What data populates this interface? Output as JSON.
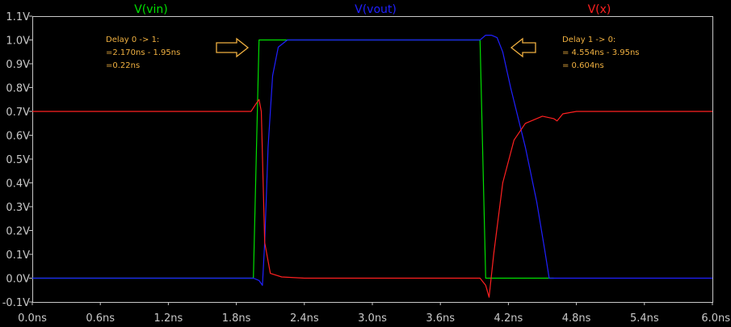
{
  "chart_data": {
    "type": "line",
    "xlim": [
      0.0,
      6.0
    ],
    "ylim": [
      -0.1,
      1.1
    ],
    "x_ticks": [
      {
        "value": 0.0,
        "label": "0.0ns"
      },
      {
        "value": 0.6,
        "label": "0.6ns"
      },
      {
        "value": 1.2,
        "label": "1.2ns"
      },
      {
        "value": 1.8,
        "label": "1.8ns"
      },
      {
        "value": 2.4,
        "label": "2.4ns"
      },
      {
        "value": 3.0,
        "label": "3.0ns"
      },
      {
        "value": 3.6,
        "label": "3.6ns"
      },
      {
        "value": 4.2,
        "label": "4.2ns"
      },
      {
        "value": 4.8,
        "label": "4.8ns"
      },
      {
        "value": 5.4,
        "label": "5.4ns"
      },
      {
        "value": 6.0,
        "label": "6.0ns"
      }
    ],
    "y_ticks": [
      {
        "value": 1.1,
        "label": "1.1V"
      },
      {
        "value": 1.0,
        "label": "1.0V"
      },
      {
        "value": 0.9,
        "label": "0.9V"
      },
      {
        "value": 0.8,
        "label": "0.8V"
      },
      {
        "value": 0.7,
        "label": "0.7V"
      },
      {
        "value": 0.6,
        "label": "0.6V"
      },
      {
        "value": 0.5,
        "label": "0.5V"
      },
      {
        "value": 0.4,
        "label": "0.4V"
      },
      {
        "value": 0.3,
        "label": "0.3V"
      },
      {
        "value": 0.2,
        "label": "0.2V"
      },
      {
        "value": 0.1,
        "label": "0.1V"
      },
      {
        "value": 0.0,
        "label": "0.0V"
      },
      {
        "value": -0.1,
        "label": "-0.1V"
      }
    ],
    "series": [
      {
        "name": "V(vin)",
        "color": "#00e000",
        "points": [
          [
            0.0,
            0.0
          ],
          [
            1.9,
            0.0
          ],
          [
            1.95,
            0.0
          ],
          [
            2.0,
            1.0
          ],
          [
            2.2,
            1.0
          ],
          [
            3.95,
            1.0
          ],
          [
            4.0,
            0.0
          ],
          [
            4.6,
            0.0
          ]
        ]
      },
      {
        "name": "V(vout)",
        "color": "#2020ff",
        "points": [
          [
            0.0,
            0.0
          ],
          [
            1.95,
            0.0
          ],
          [
            2.0,
            -0.01
          ],
          [
            2.03,
            -0.03
          ],
          [
            2.05,
            0.15
          ],
          [
            2.08,
            0.55
          ],
          [
            2.12,
            0.85
          ],
          [
            2.17,
            0.97
          ],
          [
            2.25,
            1.0
          ],
          [
            3.95,
            1.0
          ],
          [
            4.0,
            1.02
          ],
          [
            4.05,
            1.02
          ],
          [
            4.1,
            1.01
          ],
          [
            4.15,
            0.95
          ],
          [
            4.22,
            0.8
          ],
          [
            4.35,
            0.55
          ],
          [
            4.45,
            0.32
          ],
          [
            4.52,
            0.12
          ],
          [
            4.56,
            0.0
          ],
          [
            6.0,
            0.0
          ]
        ]
      },
      {
        "name": "V(x)",
        "color": "#ff2020",
        "points": [
          [
            0.0,
            0.7
          ],
          [
            1.93,
            0.7
          ],
          [
            1.97,
            0.73
          ],
          [
            2.0,
            0.75
          ],
          [
            2.02,
            0.7
          ],
          [
            2.05,
            0.15
          ],
          [
            2.1,
            0.02
          ],
          [
            2.2,
            0.005
          ],
          [
            2.4,
            0.0
          ],
          [
            3.95,
            0.0
          ],
          [
            4.0,
            -0.03
          ],
          [
            4.03,
            -0.08
          ],
          [
            4.07,
            0.1
          ],
          [
            4.15,
            0.4
          ],
          [
            4.25,
            0.58
          ],
          [
            4.35,
            0.65
          ],
          [
            4.5,
            0.68
          ],
          [
            4.6,
            0.67
          ],
          [
            4.63,
            0.66
          ],
          [
            4.68,
            0.69
          ],
          [
            4.8,
            0.7
          ],
          [
            6.0,
            0.7
          ]
        ]
      }
    ],
    "annotations": [
      {
        "lines": [
          "Delay 0 -> 1:",
          "=2.170ns - 1.95ns",
          "=0.22ns"
        ]
      },
      {
        "lines": [
          "Delay 1 -> 0:",
          "= 4.554ns - 3.95ns",
          "= 0.604ns"
        ]
      }
    ]
  }
}
